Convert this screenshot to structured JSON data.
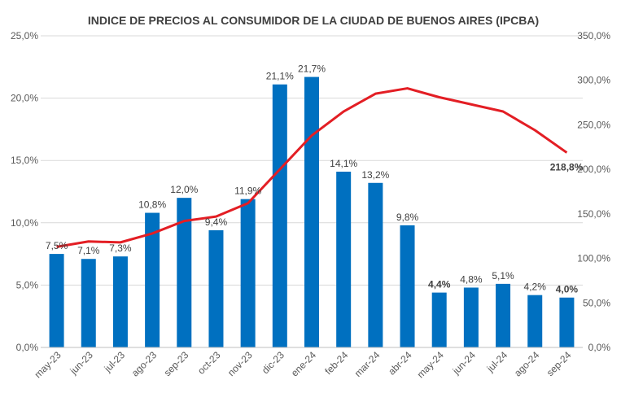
{
  "chart_data": {
    "type": "bar",
    "title": "INDICE DE PRECIOS AL CONSUMIDOR DE LA CIUDAD DE BUENOS AIRES (IPCBA)",
    "categories": [
      "may-23",
      "jun-23",
      "jul-23",
      "ago-23",
      "sep-23",
      "oct-23",
      "nov-23",
      "dic-23",
      "ene-24",
      "feb-24",
      "mar-24",
      "abr-24",
      "may-24",
      "jun-24",
      "jul-24",
      "ago-24",
      "sep-24"
    ],
    "series": [
      {
        "type": "bar",
        "axis": "left",
        "color": "#0070C0",
        "values": [
          7.5,
          7.1,
          7.3,
          10.8,
          12.0,
          9.4,
          11.9,
          21.1,
          21.7,
          14.1,
          13.2,
          9.8,
          4.4,
          4.8,
          5.1,
          4.2,
          4.0
        ],
        "labels": [
          "7,5%",
          "7,1%",
          "7,3%",
          "10,8%",
          "12,0%",
          "9,4%",
          "11,9%",
          "21,1%",
          "21,7%",
          "14,1%",
          "13,2%",
          "9,8%",
          "4,4%",
          "4,8%",
          "5,1%",
          "4,2%",
          "4,0%"
        ],
        "bold_labels": [
          12,
          16
        ],
        "highlight_label_color": "#0070C0",
        "highlight_label_index": 16
      },
      {
        "type": "line",
        "axis": "right",
        "color": "#E31E24",
        "values": [
          113,
          119,
          118,
          128,
          142,
          147,
          162,
          200,
          238,
          265,
          285,
          291,
          281,
          273,
          265,
          244,
          218.8
        ],
        "end_label": "218,8%",
        "end_label_color": "#E31E24"
      }
    ],
    "y_left": {
      "ylim": [
        0,
        25
      ],
      "ticks": [
        "0,0%",
        "5,0%",
        "10,0%",
        "15,0%",
        "20,0%",
        "25,0%"
      ]
    },
    "y_right": {
      "ylim": [
        0,
        350
      ],
      "ticks": [
        "0,0%",
        "50,0%",
        "100,0%",
        "150,0%",
        "200,0%",
        "250,0%",
        "300,0%",
        "350,0%"
      ]
    },
    "grid": true,
    "grid_color": "#D9D9D9",
    "legend": "none"
  }
}
